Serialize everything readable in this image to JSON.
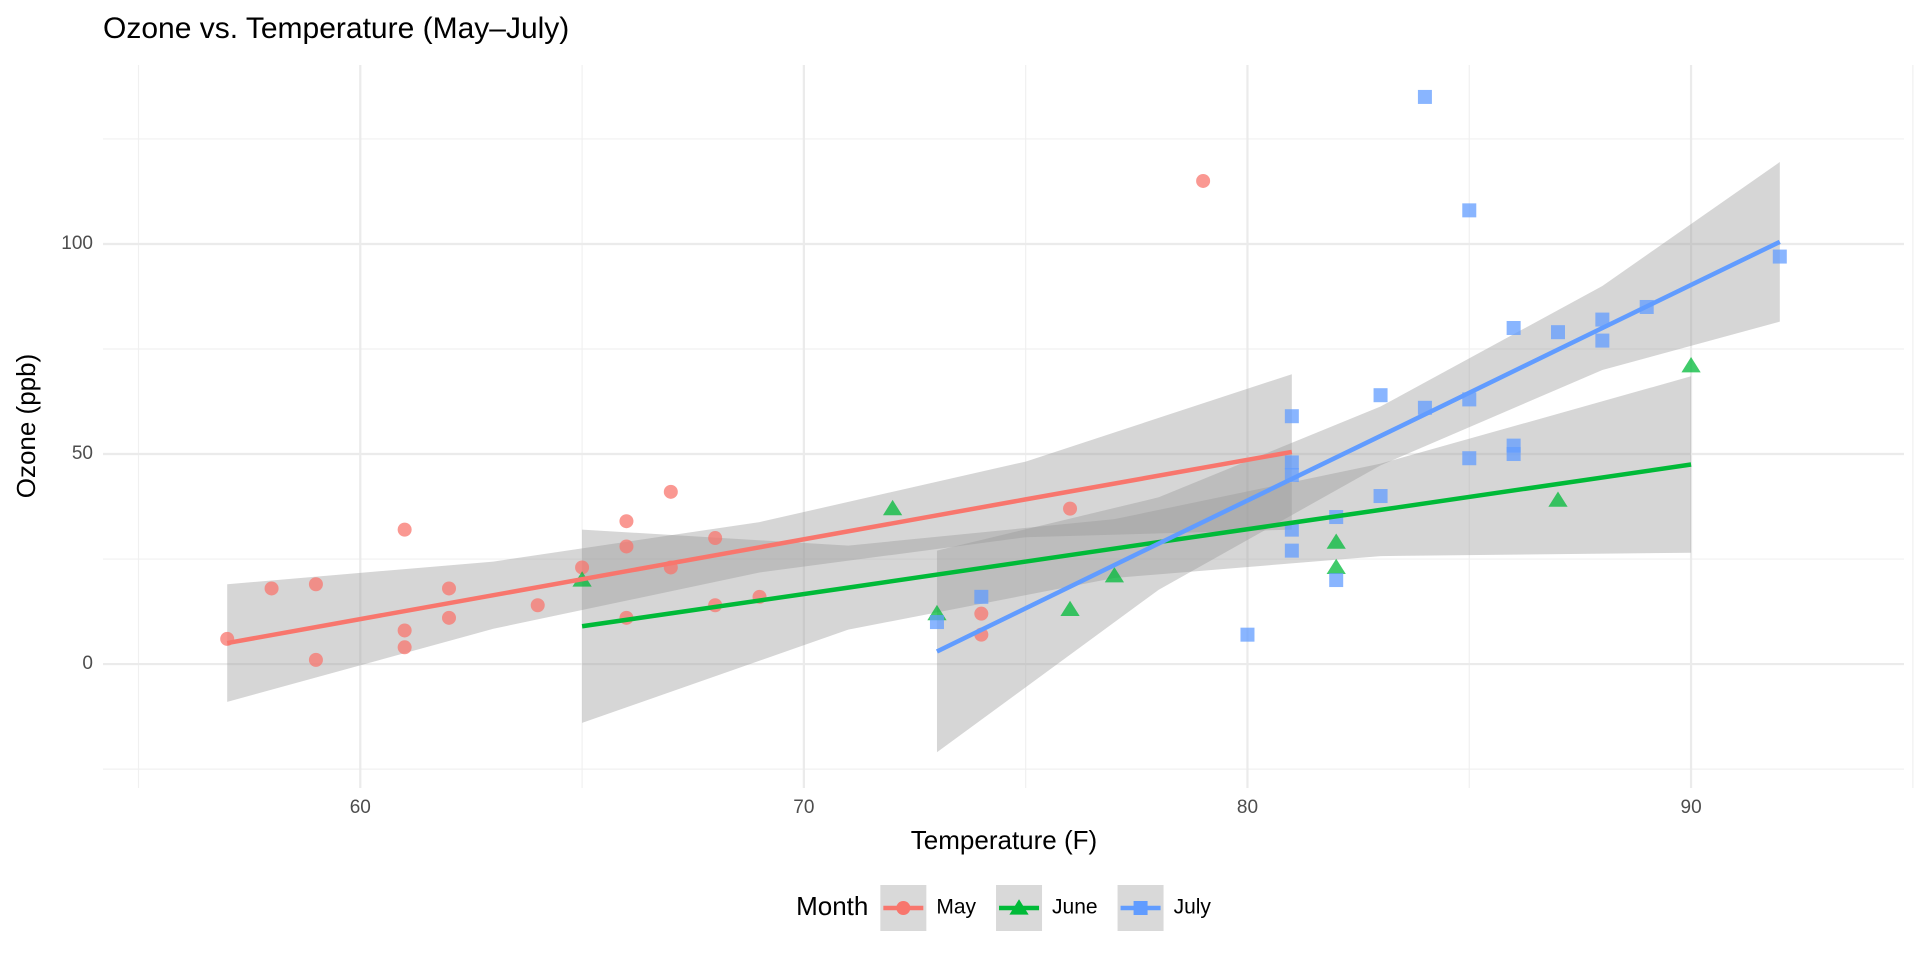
{
  "chart_data": {
    "type": "scatter",
    "title": "Ozone vs. Temperature (May–July)",
    "x_label": "Temperature (F)",
    "y_label": "Ozone (ppb)",
    "legend_title": "Month",
    "legend_position": "bottom",
    "grid": true,
    "xlim": [
      54.2,
      94.8
    ],
    "ylim": [
      -29.5,
      142.6
    ],
    "xticks": [
      60,
      70,
      80,
      90
    ],
    "yticks": [
      0,
      50,
      100
    ],
    "minor_xticks": [
      55,
      65,
      75,
      85,
      95
    ],
    "minor_yticks": [
      -25,
      25,
      75,
      125
    ],
    "series": [
      {
        "name": "May",
        "color": "#F8766D",
        "marker": "circle",
        "x": [
          57,
          58,
          59,
          59,
          61,
          61,
          61,
          62,
          62,
          64,
          65,
          66,
          66,
          66,
          67,
          67,
          68,
          68,
          69,
          74,
          74,
          76,
          79
        ],
        "values": [
          6,
          18,
          19,
          1,
          32,
          8,
          4,
          18,
          11,
          14,
          23,
          34,
          28,
          11,
          41,
          23,
          30,
          14,
          16,
          12,
          7,
          37,
          115
        ],
        "fit_x": [
          57,
          63,
          69,
          75,
          81
        ],
        "fit_y": [
          5,
          16.4,
          27.8,
          39.2,
          50.5
        ],
        "ci_lower": [
          -9,
          8.4,
          21.8,
          30.2,
          32
        ],
        "ci_upper": [
          19,
          24.4,
          33.8,
          48.2,
          69
        ]
      },
      {
        "name": "June",
        "color": "#00BA38",
        "marker": "triangle",
        "x": [
          65,
          72,
          73,
          76,
          77,
          82,
          82,
          87,
          90
        ],
        "values": [
          20,
          37,
          12,
          13,
          21,
          29,
          23,
          39,
          71
        ],
        "fit_x": [
          65,
          71,
          77,
          83,
          90
        ],
        "fit_y": [
          9,
          18.2,
          27.5,
          36.7,
          47.5
        ],
        "ci_lower": [
          -14,
          8.2,
          20.5,
          25.7,
          26.5
        ],
        "ci_upper": [
          32,
          28.2,
          34.5,
          47.7,
          68.5
        ]
      },
      {
        "name": "July",
        "color": "#619CFF",
        "marker": "square",
        "x": [
          73,
          74,
          80,
          81,
          81,
          81,
          81,
          81,
          82,
          82,
          83,
          83,
          84,
          84,
          85,
          85,
          85,
          86,
          86,
          86,
          87,
          88,
          88,
          89,
          92
        ],
        "values": [
          10,
          16,
          7,
          59,
          48,
          45,
          32,
          27,
          35,
          20,
          64,
          40,
          135,
          61,
          108,
          63,
          49,
          80,
          52,
          50,
          79,
          82,
          77,
          85,
          97
        ],
        "fit_x": [
          73,
          78,
          83,
          88,
          92
        ],
        "fit_y": [
          3,
          28.7,
          54.3,
          80,
          100.5
        ],
        "ci_lower": [
          -21,
          17.7,
          47.3,
          70,
          81.5
        ],
        "ci_upper": [
          27,
          39.7,
          61.3,
          90,
          119.5
        ]
      }
    ]
  }
}
